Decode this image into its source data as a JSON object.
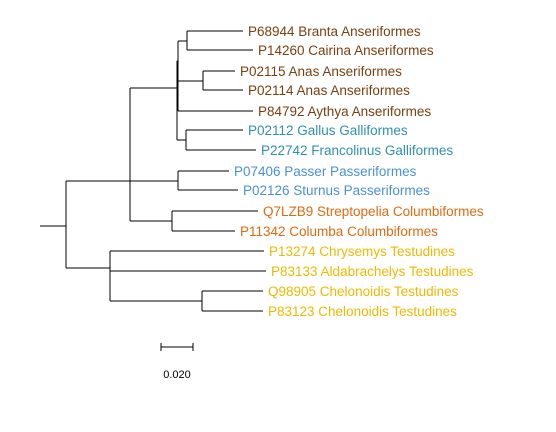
{
  "tree": {
    "colors": {
      "Anseriformes": "#7b3f10",
      "Galliformes": "#2f8fb5",
      "Passeriformes": "#4a90d9",
      "Columbiformes": "#e06a10",
      "Testudines": "#f0b800",
      "branch": "#000000"
    },
    "leaves": [
      {
        "label": "P68944 Branta Anseriformes",
        "group": "Anseriformes"
      },
      {
        "label": "P14260 Cairina Anseriformes",
        "group": "Anseriformes"
      },
      {
        "label": "P02115 Anas Anseriformes",
        "group": "Anseriformes"
      },
      {
        "label": "P02114 Anas Anseriformes",
        "group": "Anseriformes"
      },
      {
        "label": "P84792 Aythya Anseriformes",
        "group": "Anseriformes"
      },
      {
        "label": "P02112 Gallus Galliformes",
        "group": "Galliformes"
      },
      {
        "label": "P22742 Francolinus Galliformes",
        "group": "Galliformes"
      },
      {
        "label": "P07406 Passer Passeriformes",
        "group": "Passeriformes"
      },
      {
        "label": "P02126 Sturnus Passeriformes",
        "group": "Passeriformes"
      },
      {
        "label": "Q7LZB9 Streptopelia Columbiformes",
        "group": "Columbiformes"
      },
      {
        "label": "P11342 Columba Columbiformes",
        "group": "Columbiformes"
      },
      {
        "label": "P13274 Chrysemys Testudines",
        "group": "Testudines"
      },
      {
        "label": "P83133 Aldabrachelys Testudines",
        "group": "Testudines"
      },
      {
        "label": "Q98905 Chelonoidis Testudines",
        "group": "Testudines"
      },
      {
        "label": "P83123 Chelonoidis Testudines",
        "group": "Testudines"
      }
    ],
    "scale_bar": {
      "label": "0.020"
    }
  }
}
